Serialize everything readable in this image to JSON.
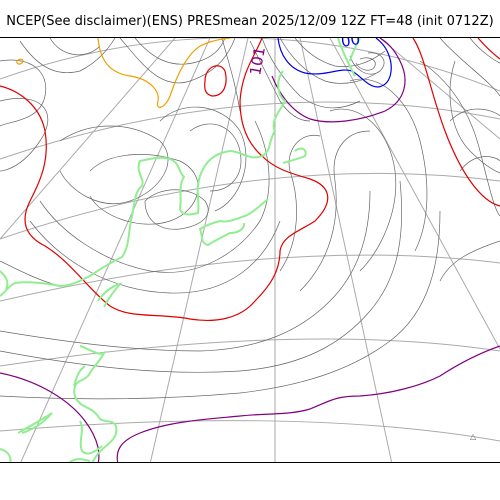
{
  "title": "NCEP(See disclaimer)(ENS) PRESmean 2025/12/09 12Z FT=48 (init 0712Z)",
  "map": {
    "field": "PRESmean",
    "isobar_labels": [
      "101",
      "00"
    ],
    "corner_mark": "△",
    "colors": {
      "isobar": "#666666",
      "red_contour": "#e00000",
      "purple_contour": "#800080",
      "blue_contour": "#0000ee",
      "orange_contour": "#f0a000",
      "coastline": "#90ee90",
      "graticule": "#aaaaaa"
    }
  }
}
